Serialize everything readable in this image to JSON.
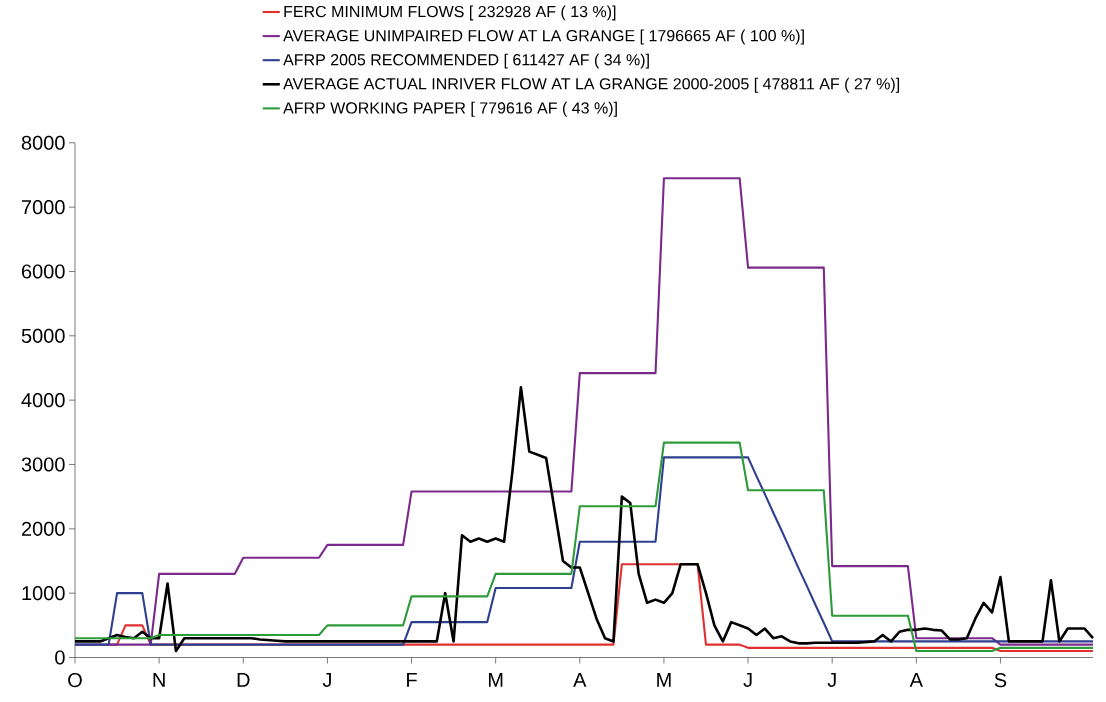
{
  "chart_data": {
    "type": "line",
    "ylim": [
      0,
      8000
    ],
    "categories": [
      "O",
      null,
      null,
      null,
      null,
      null,
      null,
      null,
      null,
      null,
      "N",
      null,
      null,
      null,
      null,
      null,
      null,
      null,
      null,
      null,
      "D",
      null,
      null,
      null,
      null,
      null,
      null,
      null,
      null,
      null,
      "J",
      null,
      null,
      null,
      null,
      null,
      null,
      null,
      null,
      null,
      "F",
      null,
      null,
      null,
      null,
      null,
      null,
      null,
      null,
      null,
      "M",
      null,
      null,
      null,
      null,
      null,
      null,
      null,
      null,
      null,
      "A",
      null,
      null,
      null,
      null,
      null,
      null,
      null,
      null,
      null,
      "M",
      null,
      null,
      null,
      null,
      null,
      null,
      null,
      null,
      null,
      "J",
      null,
      null,
      null,
      null,
      null,
      null,
      null,
      null,
      null,
      "J",
      null,
      null,
      null,
      null,
      null,
      null,
      null,
      null,
      null,
      "A",
      null,
      null,
      null,
      null,
      null,
      null,
      null,
      null,
      null,
      "S",
      null,
      null,
      null,
      null,
      null,
      null,
      null,
      null,
      null,
      null,
      null
    ],
    "yticks": [
      0,
      1000,
      2000,
      3000,
      4000,
      5000,
      6000,
      7000,
      8000
    ],
    "legend": "top",
    "marker": "none",
    "line_style": "solid",
    "series": [
      {
        "name": "FERC MINIMUM FLOWS  [ 232928 AF ( 13 %)]",
        "color": "#e03030",
        "values": [
          null,
          null,
          null,
          null,
          200,
          200,
          500,
          500,
          500,
          200,
          200,
          200,
          200,
          200,
          200,
          200,
          200,
          200,
          200,
          200,
          200,
          200,
          200,
          200,
          200,
          200,
          200,
          200,
          200,
          200,
          200,
          200,
          200,
          200,
          200,
          200,
          200,
          200,
          200,
          200,
          200,
          200,
          200,
          200,
          200,
          200,
          200,
          200,
          200,
          200,
          200,
          200,
          200,
          200,
          200,
          200,
          200,
          200,
          200,
          200,
          200,
          200,
          200,
          200,
          200,
          1450,
          1450,
          1450,
          1450,
          1450,
          1450,
          1450,
          1450,
          1450,
          1450,
          200,
          200,
          200,
          200,
          200,
          150,
          150,
          150,
          150,
          150,
          150,
          150,
          150,
          150,
          150,
          150,
          150,
          150,
          150,
          150,
          150,
          150,
          150,
          150,
          150,
          150,
          150,
          150,
          150,
          150,
          150,
          150,
          150,
          150,
          150,
          100,
          100,
          100,
          100,
          100,
          100,
          100,
          100,
          100,
          100,
          100,
          100
        ]
      },
      {
        "name": "AVERAGE UNIMPAIRED FLOW AT LA GRANGE [ 1796665 AF ( 100 %)]",
        "color": "#7b2a8c",
        "values": [
          200,
          200,
          200,
          200,
          200,
          200,
          200,
          200,
          200,
          200,
          1300,
          1300,
          1300,
          1300,
          1300,
          1300,
          1300,
          1300,
          1300,
          1300,
          1550,
          1550,
          1550,
          1550,
          1550,
          1550,
          1550,
          1550,
          1550,
          1550,
          1750,
          1750,
          1750,
          1750,
          1750,
          1750,
          1750,
          1750,
          1750,
          1750,
          2580,
          2580,
          2580,
          2580,
          2580,
          2580,
          2580,
          2580,
          2580,
          2580,
          2580,
          2580,
          2580,
          2580,
          2580,
          2580,
          2580,
          2580,
          2580,
          2580,
          4420,
          4420,
          4420,
          4420,
          4420,
          4420,
          4420,
          4420,
          4420,
          4420,
          7450,
          7450,
          7450,
          7450,
          7450,
          7450,
          7450,
          7450,
          7450,
          7450,
          6060,
          6060,
          6060,
          6060,
          6060,
          6060,
          6060,
          6060,
          6060,
          6060,
          1420,
          1420,
          1420,
          1420,
          1420,
          1420,
          1420,
          1420,
          1420,
          1420,
          300,
          300,
          300,
          300,
          300,
          300,
          300,
          300,
          300,
          300,
          200,
          200,
          200,
          200,
          200,
          200,
          200,
          200,
          200,
          200,
          200,
          200
        ]
      },
      {
        "name": "AFRP 2005 RECOMMENDED [ 611427 AF ( 34 %)]",
        "color": "#2e3f8f",
        "values": [
          200,
          200,
          200,
          200,
          200,
          1000,
          1000,
          1000,
          1000,
          200,
          200,
          200,
          200,
          200,
          200,
          200,
          200,
          200,
          200,
          200,
          200,
          200,
          200,
          200,
          200,
          200,
          200,
          200,
          200,
          200,
          200,
          200,
          200,
          200,
          200,
          200,
          200,
          200,
          200,
          200,
          550,
          550,
          550,
          550,
          550,
          550,
          550,
          550,
          550,
          550,
          1080,
          1080,
          1080,
          1080,
          1080,
          1080,
          1080,
          1080,
          1080,
          1080,
          1800,
          1800,
          1800,
          1800,
          1800,
          1800,
          1800,
          1800,
          1800,
          1800,
          3110,
          3110,
          3110,
          3110,
          3110,
          3110,
          3110,
          3110,
          3110,
          3110,
          3110,
          2820,
          2540,
          2250,
          1970,
          1680,
          1390,
          1110,
          820,
          540,
          250,
          250,
          250,
          250,
          250,
          250,
          250,
          250,
          250,
          250,
          250,
          250,
          250,
          250,
          250,
          250,
          250,
          250,
          250,
          250,
          250,
          250,
          250,
          250,
          250,
          250,
          250,
          250,
          250,
          250,
          250,
          250
        ]
      },
      {
        "name": "AVERAGE ACTUAL INRIVER FLOW AT LA GRANGE 2000-2005 [ 478811 AF ( 27 %)]",
        "color": "#000000",
        "values": [
          250,
          250,
          250,
          250,
          300,
          350,
          320,
          300,
          400,
          300,
          300,
          1150,
          100,
          300,
          300,
          300,
          300,
          300,
          300,
          300,
          300,
          300,
          280,
          270,
          260,
          250,
          250,
          250,
          250,
          250,
          250,
          250,
          250,
          250,
          250,
          250,
          250,
          250,
          250,
          250,
          250,
          250,
          250,
          250,
          1000,
          250,
          1900,
          1800,
          1850,
          1800,
          1850,
          1800,
          2900,
          4200,
          3200,
          3150,
          3100,
          2300,
          1500,
          1400,
          1400,
          1000,
          600,
          300,
          250,
          2500,
          2400,
          1300,
          850,
          900,
          850,
          1000,
          1450,
          1450,
          1450,
          1000,
          500,
          250,
          550,
          500,
          450,
          350,
          450,
          300,
          330,
          250,
          220,
          220,
          230,
          230,
          230,
          230,
          230,
          230,
          240,
          250,
          350,
          250,
          400,
          430,
          430,
          450,
          430,
          420,
          280,
          280,
          300,
          600,
          850,
          700,
          1250,
          250,
          250,
          250,
          250,
          250,
          1200,
          250,
          450,
          450,
          450,
          300
        ]
      },
      {
        "name": "AFRP  WORKING PAPER  [ 779616 AF ( 43 %)]",
        "color": "#2e9a3a",
        "values": [
          300,
          300,
          300,
          300,
          300,
          300,
          300,
          300,
          300,
          300,
          350,
          350,
          350,
          350,
          350,
          350,
          350,
          350,
          350,
          350,
          350,
          350,
          350,
          350,
          350,
          350,
          350,
          350,
          350,
          350,
          500,
          500,
          500,
          500,
          500,
          500,
          500,
          500,
          500,
          500,
          950,
          950,
          950,
          950,
          950,
          950,
          950,
          950,
          950,
          950,
          1300,
          1300,
          1300,
          1300,
          1300,
          1300,
          1300,
          1300,
          1300,
          1300,
          2350,
          2350,
          2350,
          2350,
          2350,
          2350,
          2350,
          2350,
          2350,
          2350,
          3340,
          3340,
          3340,
          3340,
          3340,
          3340,
          3340,
          3340,
          3340,
          3340,
          2600,
          2600,
          2600,
          2600,
          2600,
          2600,
          2600,
          2600,
          2600,
          2600,
          650,
          650,
          650,
          650,
          650,
          650,
          650,
          650,
          650,
          650,
          100,
          100,
          100,
          100,
          100,
          100,
          100,
          100,
          100,
          100,
          150,
          150,
          150,
          150,
          150,
          150,
          150,
          150,
          150,
          150,
          150,
          150
        ]
      }
    ]
  }
}
